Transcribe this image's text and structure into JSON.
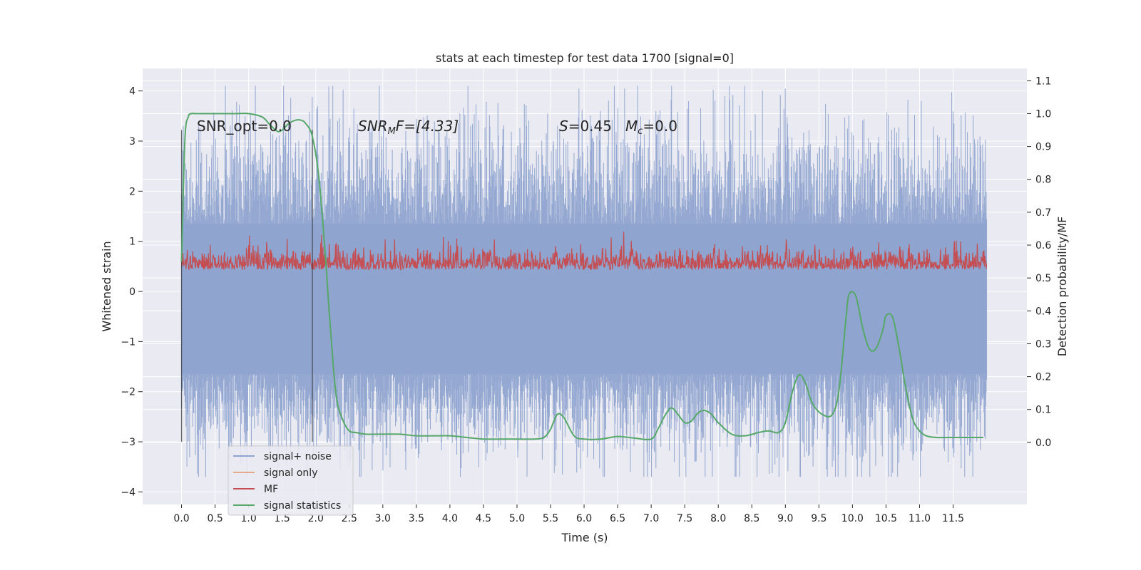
{
  "chart_data": {
    "type": "line",
    "title": "stats at each timestep for test data 1700 [signal=0]",
    "xlabel": "Time (s)",
    "ylabel_left": "Whitened strain",
    "ylabel_right": "Detection probability/MF",
    "xlim": [
      -0.58,
      12.6
    ],
    "ylim_left": [
      -4.25,
      4.45
    ],
    "ylim_right": [
      -0.1888,
      1.1375
    ],
    "x_ticks": [
      0.0,
      0.5,
      1.0,
      1.5,
      2.0,
      2.5,
      3.0,
      3.5,
      4.0,
      4.5,
      5.0,
      5.5,
      6.0,
      6.5,
      7.0,
      7.5,
      8.0,
      8.5,
      9.0,
      9.5,
      10.0,
      10.5,
      11.0,
      11.5
    ],
    "x_tick_labels": [
      "0.0",
      "0.5",
      "1.0",
      "1.5",
      "2.0",
      "2.5",
      "3.0",
      "3.5",
      "4.0",
      "4.5",
      "5.0",
      "5.5",
      "6.0",
      "6.5",
      "7.0",
      "7.5",
      "8.0",
      "8.5",
      "9.0",
      "9.5",
      "10.0",
      "10.5",
      "11.0",
      "11.5"
    ],
    "y_left_ticks": [
      4,
      3,
      2,
      1,
      0,
      -1,
      -2,
      -3,
      -4
    ],
    "y_left_tick_labels": [
      "4",
      "3",
      "2",
      "1",
      "0",
      "−1",
      "−2",
      "−3",
      "−4"
    ],
    "y_right_ticks": [
      1.1,
      1.0,
      0.9,
      0.8,
      0.7,
      0.6,
      0.5,
      0.4,
      0.3,
      0.2,
      0.1,
      0.0
    ],
    "y_right_tick_labels": [
      "1.1",
      "1.0",
      "0.9",
      "0.8",
      "0.7",
      "0.6",
      "0.5",
      "0.4",
      "0.3",
      "0.2",
      "0.1",
      "0.0"
    ],
    "grid": true,
    "legend_position": "lower-left",
    "annotations": {
      "snr_opt": "SNR_opt=0.0",
      "snr_mf_name": "SNR",
      "snr_mf_sub": "M",
      "snr_mf_rest": "F=[4.33]",
      "s_name": "S",
      "s_rest": "=0.45",
      "mc_name": "M",
      "mc_sub": "c",
      "mc_rest": "=0.0"
    },
    "window_markers": {
      "x": [
        0.0,
        1.95
      ],
      "y_range": [
        -3.0,
        3.22
      ]
    },
    "series": [
      {
        "name": "signal+ noise",
        "color": "#8fa4cf",
        "axis": "left",
        "style": "noise",
        "x_range": [
          0.0,
          12.0
        ],
        "envelope": [
          -3.7,
          4.1
        ],
        "points_drawn": 1800
      },
      {
        "name": "signal only",
        "color": "#e8a88c",
        "axis": "left",
        "style": "line",
        "x": [],
        "y": []
      },
      {
        "name": "MF",
        "color": "#c44e52",
        "axis": "right",
        "style": "noise",
        "x_range": [
          0.0,
          12.0
        ],
        "envelope": [
          0.5,
          0.64
        ],
        "points_drawn": 1800
      },
      {
        "name": "signal statistics",
        "color": "#55a868",
        "axis": "right",
        "style": "line",
        "x": [
          0.0,
          0.05,
          0.1,
          0.15,
          0.2,
          0.3,
          0.5,
          0.8,
          1.0,
          1.2,
          1.3,
          1.4,
          1.45,
          1.5,
          1.6,
          1.7,
          1.78,
          1.85,
          1.95,
          2.05,
          2.15,
          2.2,
          2.3,
          2.4,
          2.5,
          2.6,
          2.75,
          3.0,
          3.25,
          3.5,
          3.75,
          4.0,
          4.25,
          4.5,
          4.75,
          5.0,
          5.25,
          5.4,
          5.5,
          5.6,
          5.7,
          5.85,
          6.0,
          6.25,
          6.5,
          6.75,
          7.0,
          7.1,
          7.2,
          7.3,
          7.4,
          7.5,
          7.6,
          7.7,
          7.8,
          7.9,
          8.0,
          8.2,
          8.4,
          8.6,
          8.75,
          8.9,
          9.0,
          9.1,
          9.2,
          9.3,
          9.4,
          9.55,
          9.7,
          9.8,
          9.9,
          9.95,
          10.05,
          10.15,
          10.25,
          10.35,
          10.45,
          10.5,
          10.6,
          10.7,
          10.8,
          10.9,
          11.0,
          11.1,
          11.25,
          11.5,
          11.75,
          11.95
        ],
        "y": [
          0.55,
          0.92,
          0.99,
          1.0,
          1.0,
          1.0,
          1.0,
          1.0,
          1.0,
          0.99,
          0.97,
          0.95,
          0.945,
          0.95,
          0.97,
          0.98,
          0.98,
          0.97,
          0.93,
          0.8,
          0.55,
          0.4,
          0.15,
          0.07,
          0.035,
          0.03,
          0.025,
          0.025,
          0.025,
          0.02,
          0.02,
          0.02,
          0.015,
          0.01,
          0.01,
          0.01,
          0.01,
          0.015,
          0.04,
          0.085,
          0.075,
          0.02,
          0.01,
          0.01,
          0.018,
          0.013,
          0.01,
          0.04,
          0.08,
          0.105,
          0.085,
          0.06,
          0.065,
          0.09,
          0.097,
          0.085,
          0.06,
          0.025,
          0.02,
          0.03,
          0.035,
          0.03,
          0.06,
          0.15,
          0.205,
          0.18,
          0.12,
          0.085,
          0.085,
          0.16,
          0.37,
          0.45,
          0.445,
          0.35,
          0.285,
          0.285,
          0.34,
          0.385,
          0.38,
          0.28,
          0.16,
          0.07,
          0.035,
          0.02,
          0.015,
          0.015,
          0.015,
          0.015
        ]
      }
    ]
  }
}
